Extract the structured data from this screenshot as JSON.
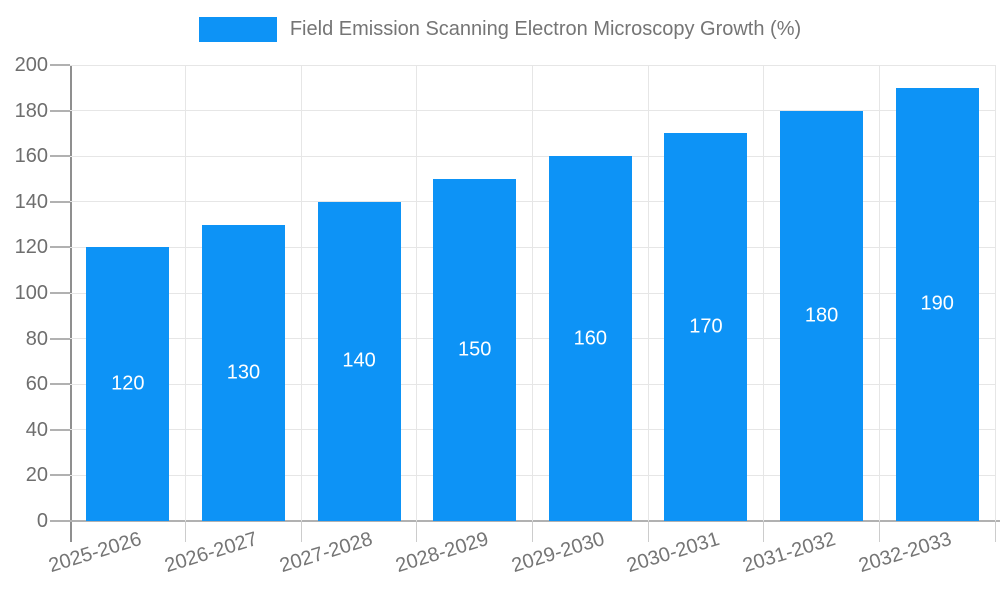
{
  "legend": {
    "label": "Field Emission Scanning Electron Microscopy Growth (%)",
    "swatch_color": "#0d93f6"
  },
  "chart_data": {
    "type": "bar",
    "title": "Field Emission Scanning Electron Microscopy Growth (%)",
    "categories": [
      "2025-2026",
      "2026-2027",
      "2027-2028",
      "2028-2029",
      "2029-2030",
      "2030-2031",
      "2031-2032",
      "2032-2033"
    ],
    "values": [
      120,
      130,
      140,
      150,
      160,
      170,
      180,
      190
    ],
    "bar_labels": [
      "120",
      "130",
      "140",
      "150",
      "160",
      "170",
      "180",
      "190"
    ],
    "xlabel": "",
    "ylabel": "",
    "ylim": [
      0,
      200
    ],
    "yticks": [
      0,
      20,
      40,
      60,
      80,
      100,
      120,
      140,
      160,
      180,
      200
    ],
    "grid": true,
    "legend_position": "top",
    "bar_color": "#0d93f6",
    "bar_label_color": "#ffffff",
    "axis_text_color": "#6e6e6e",
    "category_text_color": "#757575",
    "gridline_color": "#e6e6e6"
  }
}
